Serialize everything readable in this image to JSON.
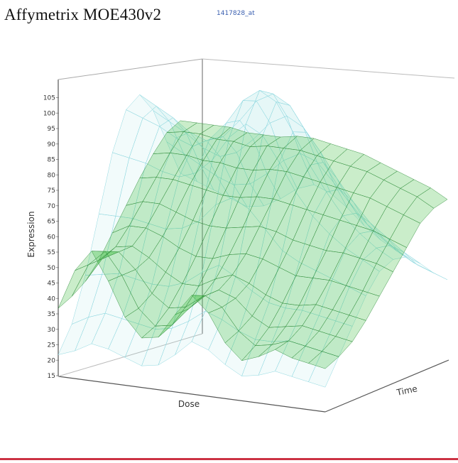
{
  "header": {
    "title": "Affymetrix MOE430v2",
    "probe_id": "1417828_at"
  },
  "chart_data": {
    "type": "surface",
    "zlabel": "Expression",
    "xlabel": "Dose",
    "ylabel": "Time",
    "zlim": [
      15,
      105
    ],
    "z_ticks": [
      "105",
      "100",
      "95",
      "90",
      "85",
      "80",
      "75",
      "70",
      "65",
      "60",
      "55",
      "50",
      "45",
      "40",
      "35",
      "30",
      "25",
      "20",
      "15"
    ],
    "grid": true,
    "series": [
      {
        "surface": "front",
        "color": "#3fbf3f",
        "values": [
          [
            37,
            50,
            57,
            48,
            37,
            31,
            32,
            40,
            47,
            42,
            33,
            28,
            30,
            33,
            31,
            30,
            29
          ],
          [
            39,
            50,
            55,
            48,
            38,
            33,
            34,
            40,
            45,
            42,
            35,
            31,
            32,
            34,
            33,
            32,
            31
          ],
          [
            42,
            50,
            53,
            48,
            41,
            37,
            38,
            42,
            45,
            43,
            38,
            35,
            36,
            37,
            36,
            35,
            34
          ],
          [
            47,
            52,
            53,
            50,
            46,
            43,
            43,
            46,
            48,
            46,
            43,
            41,
            41,
            42,
            41,
            40,
            39
          ],
          [
            54,
            57,
            57,
            55,
            52,
            50,
            50,
            52,
            53,
            52,
            50,
            48,
            48,
            48,
            47,
            46,
            45
          ],
          [
            61,
            63,
            63,
            61,
            59,
            58,
            58,
            59,
            60,
            59,
            57,
            56,
            55,
            55,
            54,
            53,
            51
          ],
          [
            68,
            69,
            69,
            68,
            67,
            66,
            66,
            67,
            67,
            66,
            65,
            64,
            63,
            62,
            61,
            59,
            57
          ],
          [
            74,
            75,
            75,
            74,
            74,
            73,
            73,
            74,
            74,
            73,
            72,
            71,
            70,
            69,
            67,
            65,
            63
          ],
          [
            79,
            80,
            80,
            79,
            79,
            78,
            79,
            79,
            79,
            78,
            77,
            76,
            75,
            73,
            71,
            69,
            66
          ],
          [
            81,
            81,
            81,
            81,
            80,
            80,
            80,
            81,
            81,
            80,
            79,
            78,
            76,
            74,
            72,
            70,
            67
          ]
        ]
      },
      {
        "surface": "back",
        "color": "#7fd6d6",
        "values": [
          [
            22,
            24,
            27,
            26,
            24,
            22,
            23,
            27,
            32,
            30,
            26,
            23,
            24,
            26,
            25,
            24,
            23
          ],
          [
            30,
            33,
            35,
            34,
            33,
            32,
            33,
            36,
            40,
            38,
            35,
            33,
            33,
            34,
            33,
            32,
            31
          ],
          [
            44,
            45,
            46,
            45,
            44,
            44,
            46,
            50,
            53,
            50,
            46,
            43,
            42,
            42,
            41,
            40,
            39
          ],
          [
            62,
            62,
            62,
            61,
            60,
            61,
            64,
            70,
            73,
            70,
            64,
            58,
            55,
            53,
            51,
            49,
            47
          ],
          [
            80,
            79,
            78,
            76,
            75,
            77,
            82,
            90,
            95,
            92,
            84,
            75,
            68,
            63,
            59,
            56,
            53
          ],
          [
            92,
            90,
            88,
            85,
            83,
            86,
            92,
            100,
            104,
            101,
            92,
            82,
            74,
            67,
            62,
            58,
            55
          ],
          [
            95,
            92,
            89,
            85,
            83,
            85,
            91,
            98,
            101,
            98,
            90,
            81,
            73,
            66,
            61,
            57,
            54
          ],
          [
            88,
            85,
            82,
            78,
            76,
            78,
            83,
            89,
            92,
            89,
            82,
            74,
            67,
            61,
            57,
            53,
            50
          ],
          [
            76,
            73,
            70,
            67,
            65,
            66,
            70,
            75,
            78,
            76,
            70,
            64,
            58,
            54,
            50,
            47,
            45
          ],
          [
            64,
            62,
            60,
            58,
            56,
            57,
            60,
            64,
            66,
            64,
            60,
            55,
            51,
            48,
            45,
            43,
            41
          ]
        ]
      }
    ]
  }
}
